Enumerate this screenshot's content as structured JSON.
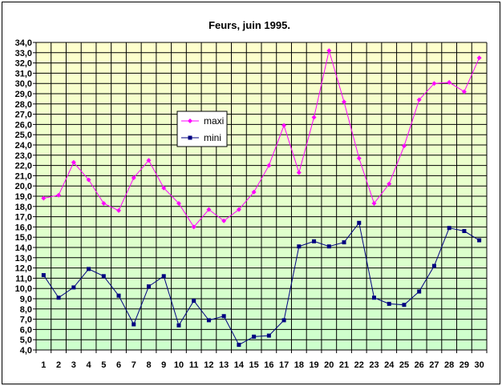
{
  "chart_data": {
    "type": "line",
    "title": "Feurs, juin 1995.",
    "x": [
      1,
      2,
      3,
      4,
      5,
      6,
      7,
      8,
      9,
      10,
      11,
      12,
      13,
      14,
      15,
      16,
      17,
      18,
      19,
      20,
      21,
      22,
      23,
      24,
      25,
      26,
      27,
      28,
      29,
      30
    ],
    "x_tick_labels": [
      "1",
      "2",
      "3",
      "4",
      "5",
      "6",
      "7",
      "8",
      "9",
      "10",
      "11",
      "12",
      "13",
      "14",
      "15",
      "16",
      "17",
      "18",
      "19",
      "20",
      "21",
      "22",
      "23",
      "24",
      "25",
      "26",
      "27",
      "28",
      "29",
      "30"
    ],
    "y_tick_labels": [
      "4,0",
      "5,0",
      "6,0",
      "7,0",
      "8,0",
      "9,0",
      "10,0",
      "11,0",
      "12,0",
      "13,0",
      "14,0",
      "15,0",
      "16,0",
      "17,0",
      "18,0",
      "19,0",
      "20,0",
      "21,0",
      "22,0",
      "23,0",
      "24,0",
      "25,0",
      "26,0",
      "27,0",
      "28,0",
      "29,0",
      "30,0",
      "31,0",
      "32,0",
      "33,0",
      "34,0"
    ],
    "ylim": [
      4,
      34
    ],
    "ystep": 1,
    "grid": true,
    "legend": "upper-left-inside",
    "series": [
      {
        "name": "maxi",
        "color": "#ff00ff",
        "marker": "diamond",
        "values": [
          18.8,
          19.1,
          22.3,
          20.6,
          18.3,
          17.6,
          20.8,
          22.5,
          19.8,
          18.3,
          16.0,
          17.7,
          16.6,
          17.7,
          19.4,
          22.0,
          25.9,
          21.3,
          26.7,
          33.2,
          28.2,
          22.7,
          18.3,
          20.2,
          23.9,
          28.4,
          30.0,
          30.1,
          29.2,
          32.5
        ]
      },
      {
        "name": "mini",
        "color": "#000080",
        "marker": "square",
        "values": [
          11.3,
          9.1,
          10.1,
          11.9,
          11.2,
          9.3,
          6.5,
          10.2,
          11.2,
          6.4,
          8.8,
          6.9,
          7.3,
          4.5,
          5.3,
          5.4,
          6.9,
          14.1,
          14.6,
          14.1,
          14.5,
          16.4,
          9.1,
          8.5,
          8.4,
          9.7,
          12.2,
          15.9,
          15.6,
          14.7
        ]
      }
    ],
    "colors": {
      "plot_top": "#ffffcc",
      "plot_bottom": "#ccffcc",
      "grid": "#000000"
    }
  }
}
